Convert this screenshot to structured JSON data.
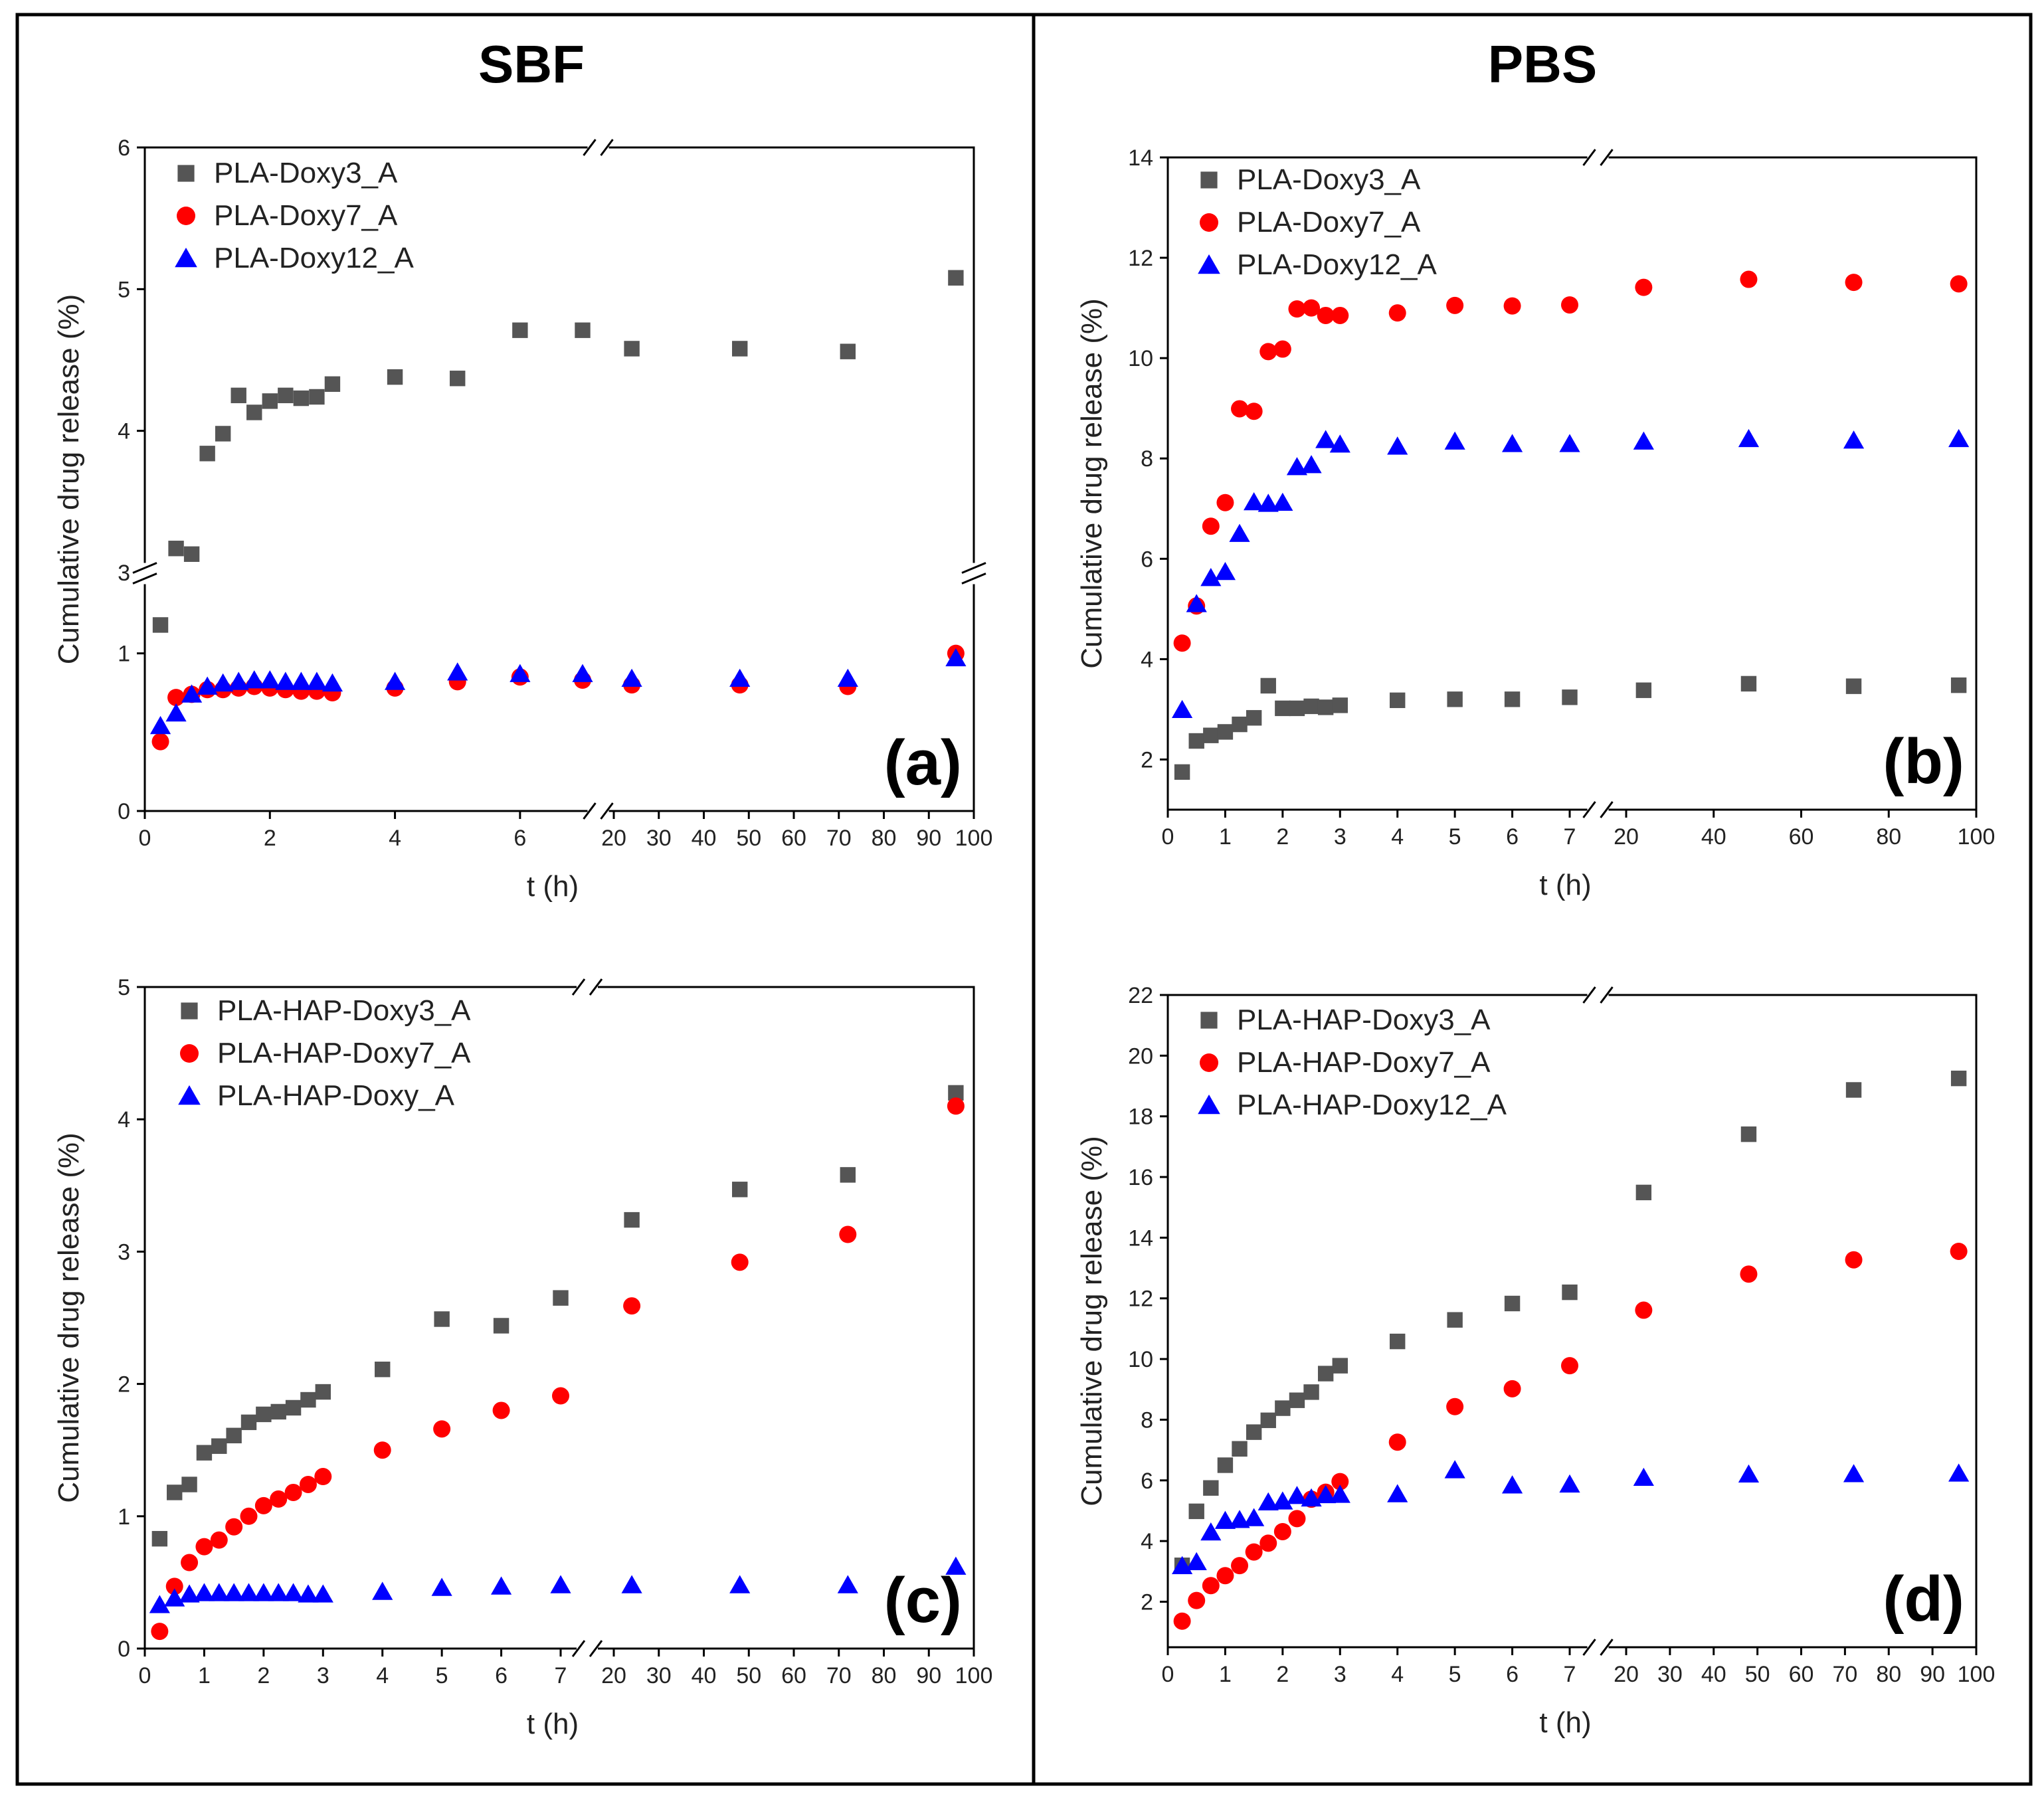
{
  "headings": {
    "sbf": "SBF",
    "pbs": "PBS"
  },
  "colors": {
    "sq": "#555555",
    "ci": "#ff0000",
    "tr": "#0000ff",
    "frame": "#000000"
  },
  "times": [
    0.25,
    0.5,
    0.75,
    1,
    1.25,
    1.5,
    1.75,
    2,
    2.25,
    2.5,
    2.75,
    3,
    4,
    5,
    6,
    7,
    24,
    48,
    72,
    96
  ],
  "chart_data": [
    {
      "id": "a",
      "type": "scatter",
      "panel_label": "(a)",
      "xlabel": "t (h)",
      "ylabel": "Cumulative drug release (%)",
      "x_ticks_left": [
        "0",
        "2",
        "4",
        "6"
      ],
      "x_ticks_right": [
        "20",
        "30",
        "40",
        "50",
        "60",
        "70",
        "80",
        "90",
        "100"
      ],
      "y_ticks_lower": [
        "0",
        "1"
      ],
      "y_ticks_upper": [
        "3",
        "4",
        "5",
        "6"
      ],
      "series": [
        {
          "name": "PLA-Doxy3_A",
          "marker": "square",
          "values": [
            1.18,
            3.17,
            3.13,
            3.84,
            3.98,
            4.25,
            4.13,
            4.21,
            4.25,
            4.23,
            4.24,
            4.33,
            4.38,
            4.37,
            4.71,
            4.71,
            4.58,
            4.58,
            4.56,
            5.08
          ]
        },
        {
          "name": "PLA-Doxy7_A",
          "marker": "circle",
          "values": [
            0.44,
            0.72,
            0.74,
            0.77,
            0.77,
            0.78,
            0.79,
            0.78,
            0.77,
            0.76,
            0.76,
            0.75,
            0.78,
            0.82,
            0.85,
            0.83,
            0.8,
            0.8,
            0.79,
            1.0
          ]
        },
        {
          "name": "PLA-Doxy12_A",
          "marker": "triangle",
          "values": [
            0.54,
            0.62,
            0.74,
            0.79,
            0.81,
            0.82,
            0.83,
            0.83,
            0.82,
            0.82,
            0.82,
            0.81,
            0.82,
            0.88,
            0.87,
            0.87,
            0.84,
            0.84,
            0.84,
            0.97
          ]
        }
      ]
    },
    {
      "id": "b",
      "type": "scatter",
      "panel_label": "(b)",
      "xlabel": "t (h)",
      "ylabel": "Cumulative drug release (%)",
      "x_ticks_left": [
        "0",
        "1",
        "2",
        "3",
        "4",
        "5",
        "6",
        "7"
      ],
      "x_ticks_right": [
        "20",
        "40",
        "60",
        "80",
        "100"
      ],
      "y_ticks": [
        "2",
        "4",
        "6",
        "8",
        "10",
        "12",
        "14"
      ],
      "series": [
        {
          "name": "PLA-Doxy3_A",
          "marker": "square",
          "values": [
            1.75,
            2.37,
            2.48,
            2.55,
            2.7,
            2.83,
            3.47,
            3.02,
            3.02,
            3.06,
            3.04,
            3.08,
            3.18,
            3.2,
            3.2,
            3.24,
            3.38,
            3.51,
            3.46,
            3.48
          ]
        },
        {
          "name": "PLA-Doxy7_A",
          "marker": "circle",
          "values": [
            4.32,
            5.06,
            6.65,
            7.12,
            8.99,
            8.94,
            10.13,
            10.18,
            10.98,
            11.0,
            10.85,
            10.85,
            10.9,
            11.05,
            11.04,
            11.06,
            11.41,
            11.57,
            11.51,
            11.48
          ]
        },
        {
          "name": "PLA-Doxy12_A",
          "marker": "triangle",
          "values": [
            2.99,
            5.1,
            5.62,
            5.74,
            6.5,
            7.13,
            7.1,
            7.12,
            7.83,
            7.87,
            8.37,
            8.28,
            8.24,
            8.34,
            8.29,
            8.29,
            8.34,
            8.39,
            8.36,
            8.39
          ]
        }
      ]
    },
    {
      "id": "c",
      "type": "scatter",
      "panel_label": "(c)",
      "xlabel": "t (h)",
      "ylabel": "Cumulative drug release (%)",
      "x_ticks_left": [
        "0",
        "1",
        "2",
        "3",
        "4",
        "5",
        "6",
        "7"
      ],
      "x_ticks_right": [
        "20",
        "30",
        "40",
        "50",
        "60",
        "70",
        "80",
        "90",
        "100"
      ],
      "y_ticks": [
        "0",
        "1",
        "2",
        "3",
        "4",
        "5"
      ],
      "series": [
        {
          "name": "PLA-HAP-Doxy3_A",
          "marker": "square",
          "values": [
            0.83,
            1.18,
            1.24,
            1.48,
            1.53,
            1.61,
            1.71,
            1.77,
            1.79,
            1.82,
            1.88,
            1.94,
            2.11,
            2.49,
            2.44,
            2.65,
            3.24,
            3.47,
            3.58,
            4.2
          ]
        },
        {
          "name": "PLA-HAP-Doxy7_A",
          "marker": "circle",
          "values": [
            0.13,
            0.47,
            0.65,
            0.77,
            0.82,
            0.92,
            1.0,
            1.08,
            1.13,
            1.18,
            1.24,
            1.3,
            1.5,
            1.66,
            1.8,
            1.91,
            2.59,
            2.92,
            3.13,
            4.1
          ]
        },
        {
          "name": "PLA-HAP-Doxy_A",
          "marker": "triangle",
          "values": [
            0.33,
            0.38,
            0.41,
            0.42,
            0.42,
            0.42,
            0.42,
            0.42,
            0.42,
            0.42,
            0.41,
            0.41,
            0.43,
            0.46,
            0.47,
            0.48,
            0.48,
            0.48,
            0.48,
            0.62
          ]
        }
      ]
    },
    {
      "id": "d",
      "type": "scatter",
      "panel_label": "(d)",
      "xlabel": "t (h)",
      "ylabel": "Cumulative drug release (%)",
      "x_ticks_left": [
        "0",
        "1",
        "2",
        "3",
        "4",
        "5",
        "6",
        "7"
      ],
      "x_ticks_right": [
        "20",
        "30",
        "40",
        "50",
        "60",
        "70",
        "80",
        "90",
        "100"
      ],
      "y_ticks": [
        "2",
        "4",
        "6",
        "8",
        "10",
        "12",
        "14",
        "16",
        "18",
        "20",
        "22"
      ],
      "series": [
        {
          "name": "PLA-HAP-Doxy3_A",
          "marker": "square",
          "values": [
            3.2,
            4.98,
            5.75,
            6.5,
            7.04,
            7.59,
            7.98,
            8.38,
            8.64,
            8.91,
            9.52,
            9.78,
            10.58,
            11.29,
            11.83,
            12.2,
            15.49,
            17.41,
            18.87,
            19.25
          ]
        },
        {
          "name": "PLA-HAP-Doxy7_A",
          "marker": "circle",
          "values": [
            1.36,
            2.04,
            2.53,
            2.86,
            3.19,
            3.64,
            3.93,
            4.31,
            4.74,
            5.38,
            5.61,
            5.96,
            7.26,
            8.43,
            9.02,
            9.78,
            11.61,
            12.8,
            13.27,
            13.55
          ]
        },
        {
          "name": "PLA-HAP-Doxy12_A",
          "marker": "triangle",
          "values": [
            3.18,
            3.31,
            4.29,
            4.67,
            4.7,
            4.76,
            5.28,
            5.31,
            5.49,
            5.41,
            5.52,
            5.53,
            5.55,
            6.34,
            5.84,
            5.87,
            6.09,
            6.2,
            6.21,
            6.23
          ]
        }
      ]
    }
  ]
}
